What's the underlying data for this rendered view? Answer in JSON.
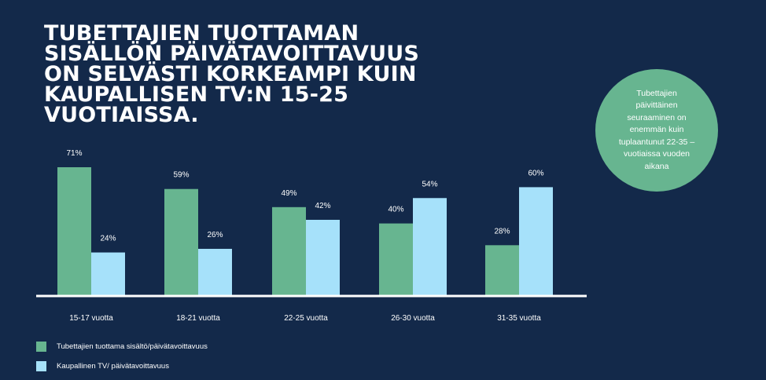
{
  "headline": "TUBETTAJIEN TUOTTAMAN SISÄLLÖN PÄIVÄTAVOITTAVUUS ON SELVÄSTI KORKEAMPI KUIN KAUPALLISEN TV:N 15-25 VUOTIAISSA.",
  "callout": "Tubettajien päivittäinen seuraaminen on enemmän kuin tuplaantunut 22-35 –vuotiaissa vuoden aikana",
  "colors": {
    "background": "#13294a",
    "series_green": "#67b590",
    "series_blue": "#a6e1fa",
    "bubble": "#67b590"
  },
  "chart_data": {
    "type": "bar",
    "categories": [
      "15-17 vuotta",
      "18-21 vuotta",
      "22-25 vuotta",
      "26-30 vuotta",
      "31-35 vuotta"
    ],
    "series": [
      {
        "name": "Tubettajien tuottama sisältö/päivätavoittavuus",
        "values": [
          71,
          59,
          49,
          40,
          28
        ],
        "labels": [
          "71%",
          "59%",
          "49%",
          "40%",
          "28%"
        ]
      },
      {
        "name": "Kaupallinen TV/ päivätavoittavuus",
        "values": [
          24,
          26,
          42,
          54,
          60
        ],
        "labels": [
          "24%",
          "26%",
          "42%",
          "54%",
          "60%"
        ]
      }
    ],
    "ylim": [
      0,
      100
    ],
    "grid": false,
    "legend": "bottom-left"
  }
}
